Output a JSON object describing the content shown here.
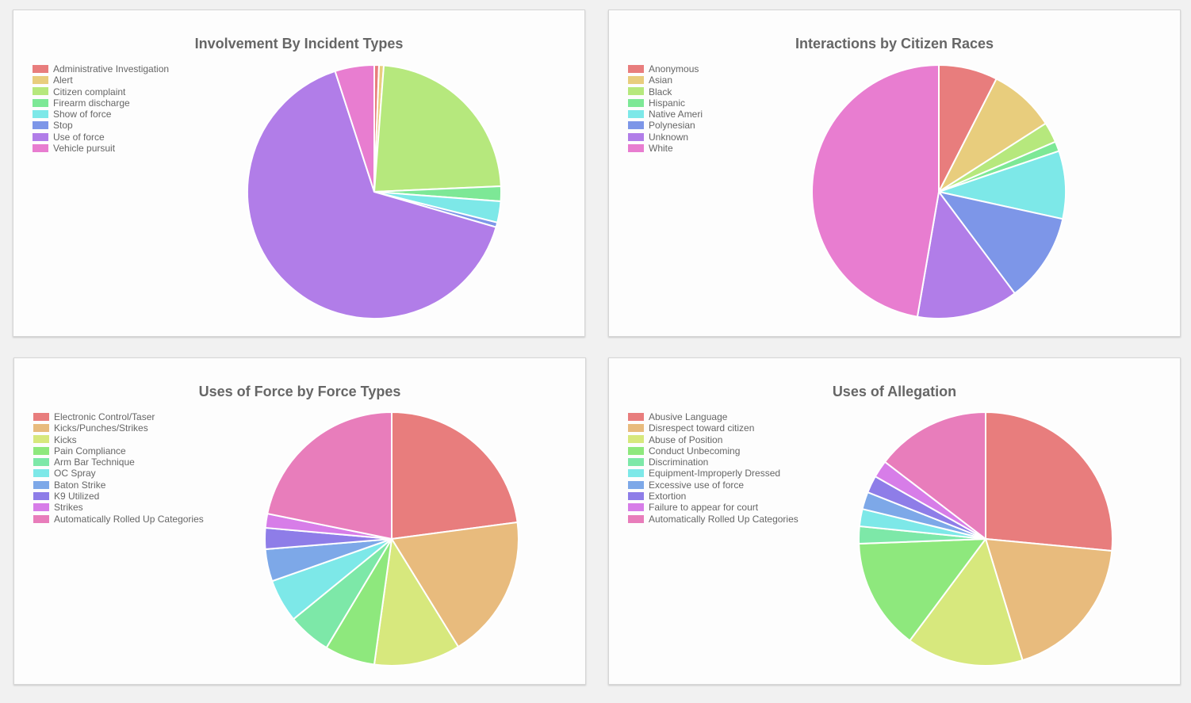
{
  "chart_data": [
    {
      "type": "pie",
      "title": "Involvement By Incident Types",
      "categories": [
        "Administrative Investigation",
        "Alert",
        "Citizen complaint",
        "Firearm discharge",
        "Show of force",
        "Stop",
        "Use of force",
        "Vehicle pursuit"
      ],
      "values": [
        0.6,
        0.6,
        23.1,
        1.9,
        2.7,
        0.6,
        65.5,
        5.0
      ],
      "colors": [
        "#e87d7d",
        "#e8cd7d",
        "#b6e87d",
        "#7de896",
        "#7de8e8",
        "#7d96e8",
        "#b17de8",
        "#e87dd0"
      ]
    },
    {
      "type": "pie",
      "title": "Interactions by Citizen Races",
      "categories": [
        "Anonymous",
        "Asian",
        "Black",
        "Hispanic",
        "Native Ameri",
        "Polynesian",
        "Unknown",
        "White"
      ],
      "values": [
        7.2,
        8.1,
        2.5,
        1.2,
        8.3,
        10.9,
        12.4,
        45.4
      ],
      "colors": [
        "#e87d7d",
        "#e8cd7d",
        "#b6e87d",
        "#7de896",
        "#7de8e8",
        "#7d96e8",
        "#b17de8",
        "#e87dd0"
      ]
    },
    {
      "type": "pie",
      "title": "Uses of Force by Force Types",
      "categories": [
        "Electronic Control/Taser",
        "Kicks/Punches/Strikes",
        "Kicks",
        "Pain Compliance",
        "Arm Bar Technique",
        "OC Spray",
        "Baton Strike",
        "K9 Utilized",
        "Strikes",
        "Automatically Rolled Up Categories"
      ],
      "values": [
        22.9,
        18.3,
        11.0,
        6.4,
        5.5,
        5.5,
        4.1,
        2.7,
        1.8,
        21.8
      ],
      "colors": [
        "#e87d7d",
        "#e8bb7d",
        "#d7e87d",
        "#8ee87d",
        "#7de8a8",
        "#7de8e8",
        "#7da8e8",
        "#8e7de8",
        "#d77de8",
        "#e87dbb"
      ]
    },
    {
      "type": "pie",
      "title": "Uses of Allegation",
      "categories": [
        "Abusive Language",
        "Disrespect toward citizen",
        "Abuse of Position",
        "Conduct Unbecoming",
        "Discrimination",
        "Equipment-Improperly Dressed",
        "Excessive use of force",
        "Extortion",
        "Failure to appear for court",
        "Automatically Rolled Up Categories"
      ],
      "values": [
        26.5,
        18.8,
        14.9,
        14.2,
        2.2,
        2.2,
        2.2,
        2.2,
        2.2,
        14.6
      ],
      "colors": [
        "#e87d7d",
        "#e8bb7d",
        "#d7e87d",
        "#8ee87d",
        "#7de8a8",
        "#7de8e8",
        "#7da8e8",
        "#8e7de8",
        "#d77de8",
        "#e87dbb"
      ]
    }
  ]
}
